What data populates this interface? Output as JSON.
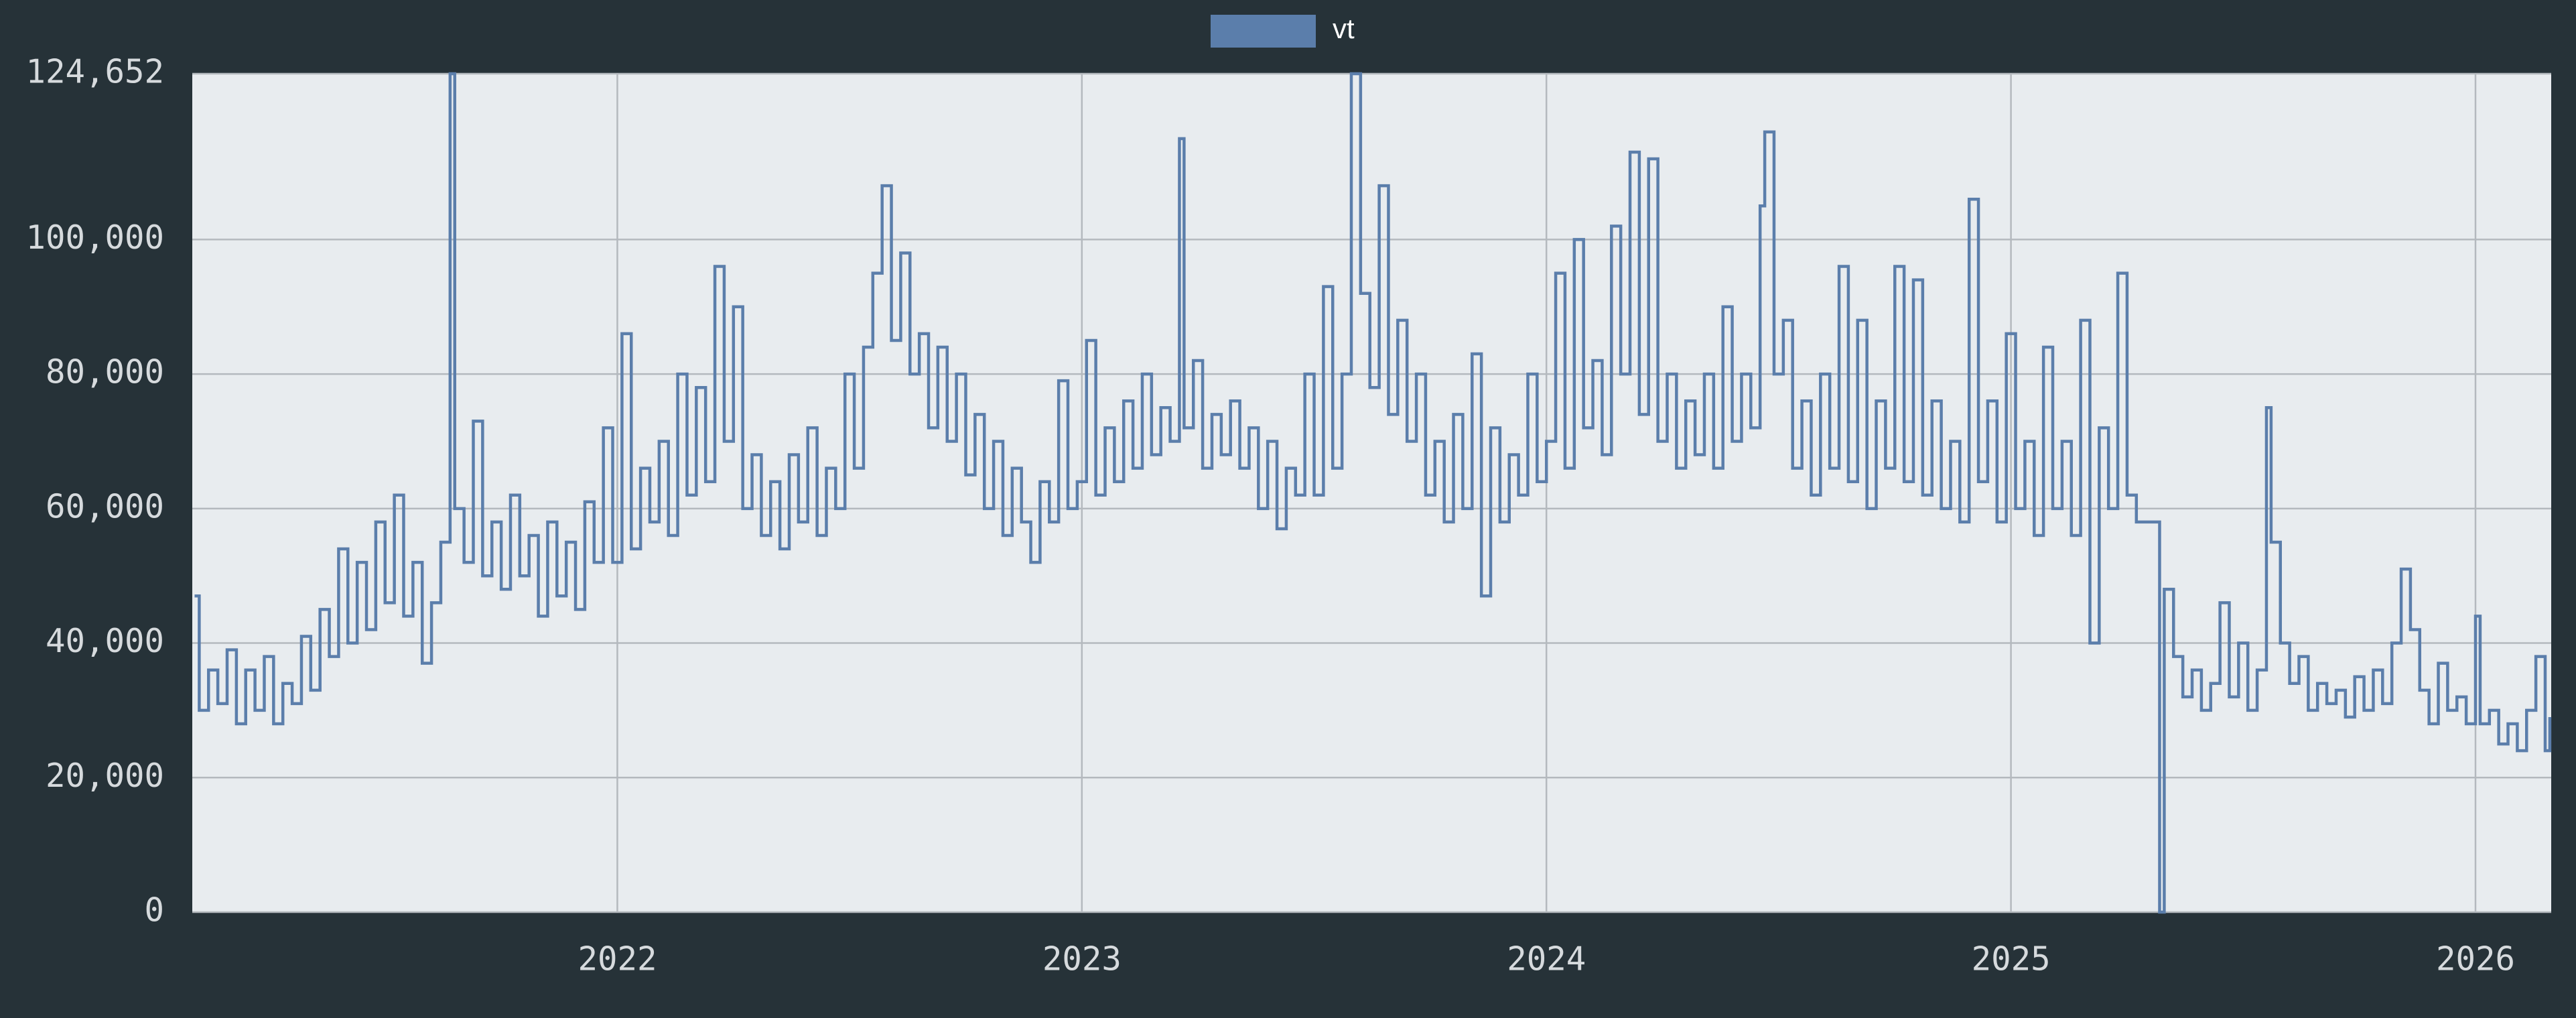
{
  "chart_data": {
    "type": "step-line",
    "xlim": [
      2021.085,
      2026.163
    ],
    "xticks": [
      2022,
      2023,
      2024,
      2025,
      2026
    ],
    "ylim": [
      0,
      124652
    ],
    "yticks": [
      0,
      {
        "value": 20000,
        "label": "20,000"
      },
      {
        "value": 40000,
        "label": "40,000"
      },
      {
        "value": 60000,
        "label": "60,000"
      },
      {
        "value": 80000,
        "label": "80,000"
      },
      {
        "value": 100000,
        "label": "100,000"
      },
      {
        "value": 124652,
        "label": "124,652"
      }
    ],
    "grid": true,
    "legend": "top",
    "x": [
      2021.09,
      2021.1,
      2021.12,
      2021.14,
      2021.16,
      2021.18,
      2021.2,
      2021.22,
      2021.24,
      2021.26,
      2021.28,
      2021.3,
      2021.32,
      2021.34,
      2021.36,
      2021.38,
      2021.4,
      2021.42,
      2021.44,
      2021.46,
      2021.48,
      2021.5,
      2021.52,
      2021.54,
      2021.56,
      2021.58,
      2021.6,
      2021.62,
      2021.64,
      2021.65,
      2021.67,
      2021.69,
      2021.71,
      2021.73,
      2021.75,
      2021.77,
      2021.79,
      2021.81,
      2021.83,
      2021.85,
      2021.87,
      2021.89,
      2021.91,
      2021.93,
      2021.95,
      2021.97,
      2021.99,
      2022.01,
      2022.03,
      2022.05,
      2022.07,
      2022.09,
      2022.11,
      2022.13,
      2022.15,
      2022.17,
      2022.19,
      2022.21,
      2022.23,
      2022.25,
      2022.27,
      2022.29,
      2022.31,
      2022.33,
      2022.35,
      2022.37,
      2022.39,
      2022.41,
      2022.43,
      2022.45,
      2022.47,
      2022.49,
      2022.51,
      2022.53,
      2022.55,
      2022.57,
      2022.59,
      2022.61,
      2022.63,
      2022.65,
      2022.67,
      2022.69,
      2022.71,
      2022.73,
      2022.75,
      2022.77,
      2022.79,
      2022.81,
      2022.83,
      2022.85,
      2022.87,
      2022.89,
      2022.91,
      2022.93,
      2022.95,
      2022.97,
      2022.99,
      2023.01,
      2023.03,
      2023.05,
      2023.07,
      2023.09,
      2023.11,
      2023.13,
      2023.15,
      2023.17,
      2023.19,
      2023.21,
      2023.22,
      2023.24,
      2023.26,
      2023.28,
      2023.3,
      2023.32,
      2023.34,
      2023.36,
      2023.38,
      2023.4,
      2023.42,
      2023.44,
      2023.46,
      2023.48,
      2023.5,
      2023.52,
      2023.54,
      2023.56,
      2023.58,
      2023.6,
      2023.62,
      2023.64,
      2023.66,
      2023.68,
      2023.7,
      2023.72,
      2023.74,
      2023.76,
      2023.78,
      2023.8,
      2023.82,
      2023.84,
      2023.86,
      2023.88,
      2023.9,
      2023.92,
      2023.94,
      2023.96,
      2023.98,
      2024.0,
      2024.02,
      2024.04,
      2024.06,
      2024.08,
      2024.1,
      2024.12,
      2024.14,
      2024.16,
      2024.18,
      2024.2,
      2024.22,
      2024.24,
      2024.26,
      2024.28,
      2024.3,
      2024.32,
      2024.34,
      2024.36,
      2024.38,
      2024.4,
      2024.42,
      2024.44,
      2024.46,
      2024.47,
      2024.49,
      2024.51,
      2024.53,
      2024.55,
      2024.57,
      2024.59,
      2024.61,
      2024.63,
      2024.65,
      2024.67,
      2024.69,
      2024.71,
      2024.73,
      2024.75,
      2024.77,
      2024.79,
      2024.81,
      2024.83,
      2024.85,
      2024.87,
      2024.89,
      2024.91,
      2024.93,
      2024.95,
      2024.97,
      2024.99,
      2025.01,
      2025.03,
      2025.05,
      2025.07,
      2025.09,
      2025.11,
      2025.13,
      2025.15,
      2025.17,
      2025.19,
      2025.21,
      2025.23,
      2025.25,
      2025.27,
      2025.32,
      2025.33,
      2025.35,
      2025.37,
      2025.39,
      2025.41,
      2025.43,
      2025.45,
      2025.47,
      2025.49,
      2025.51,
      2025.53,
      2025.55,
      2025.56,
      2025.58,
      2025.6,
      2025.62,
      2025.64,
      2025.66,
      2025.68,
      2025.7,
      2025.72,
      2025.74,
      2025.76,
      2025.78,
      2025.8,
      2025.82,
      2025.84,
      2025.86,
      2025.88,
      2025.9,
      2025.92,
      2025.94,
      2025.96,
      2025.98,
      2026.0,
      2026.01,
      2026.03,
      2026.05,
      2026.07,
      2026.09,
      2026.11,
      2026.13,
      2026.15,
      2026.16
    ],
    "series": [
      {
        "name": "vt",
        "color": "#5b7eab",
        "values": [
          47000,
          30000,
          36000,
          31000,
          39000,
          28000,
          36000,
          30000,
          38000,
          28000,
          34000,
          31000,
          41000,
          33000,
          45000,
          38000,
          54000,
          40000,
          52000,
          42000,
          58000,
          46000,
          62000,
          44000,
          52000,
          37000,
          46000,
          55000,
          124652,
          60000,
          52000,
          73000,
          50000,
          58000,
          48000,
          62000,
          50000,
          56000,
          44000,
          58000,
          47000,
          55000,
          45000,
          61000,
          52000,
          72000,
          52000,
          86000,
          54000,
          66000,
          58000,
          70000,
          56000,
          80000,
          62000,
          78000,
          64000,
          96000,
          70000,
          90000,
          60000,
          68000,
          56000,
          64000,
          54000,
          68000,
          58000,
          72000,
          56000,
          66000,
          60000,
          80000,
          66000,
          84000,
          95000,
          108000,
          85000,
          98000,
          80000,
          86000,
          72000,
          84000,
          70000,
          80000,
          65000,
          74000,
          60000,
          70000,
          56000,
          66000,
          58000,
          52000,
          64000,
          58000,
          79000,
          60000,
          64000,
          85000,
          62000,
          72000,
          64000,
          76000,
          66000,
          80000,
          68000,
          75000,
          70000,
          115000,
          72000,
          82000,
          66000,
          74000,
          68000,
          76000,
          66000,
          72000,
          60000,
          70000,
          57000,
          66000,
          62000,
          80000,
          62000,
          93000,
          66000,
          80000,
          124652,
          92000,
          78000,
          108000,
          74000,
          88000,
          70000,
          80000,
          62000,
          70000,
          58000,
          74000,
          60000,
          83000,
          47000,
          72000,
          58000,
          68000,
          62000,
          80000,
          64000,
          70000,
          95000,
          66000,
          100000,
          72000,
          82000,
          68000,
          102000,
          80000,
          113000,
          74000,
          112000,
          70000,
          80000,
          66000,
          76000,
          68000,
          80000,
          66000,
          90000,
          70000,
          80000,
          72000,
          105000,
          116000,
          80000,
          88000,
          66000,
          76000,
          62000,
          80000,
          66000,
          96000,
          64000,
          88000,
          60000,
          76000,
          66000,
          96000,
          64000,
          94000,
          62000,
          76000,
          60000,
          70000,
          58000,
          106000,
          64000,
          76000,
          58000,
          86000,
          60000,
          70000,
          56000,
          84000,
          60000,
          70000,
          56000,
          88000,
          40000,
          72000,
          60000,
          95000,
          62000,
          58000,
          0,
          48000,
          38000,
          32000,
          36000,
          30000,
          34000,
          46000,
          32000,
          40000,
          30000,
          36000,
          75000,
          55000,
          40000,
          34000,
          38000,
          30000,
          34000,
          31000,
          33000,
          29000,
          35000,
          30000,
          36000,
          31000,
          40000,
          51000,
          42000,
          33000,
          28000,
          37000,
          30000,
          32000,
          28000,
          44000,
          28000,
          30000,
          25000,
          28000,
          24000,
          30000,
          38000,
          24000,
          29000
        ]
      }
    ]
  }
}
